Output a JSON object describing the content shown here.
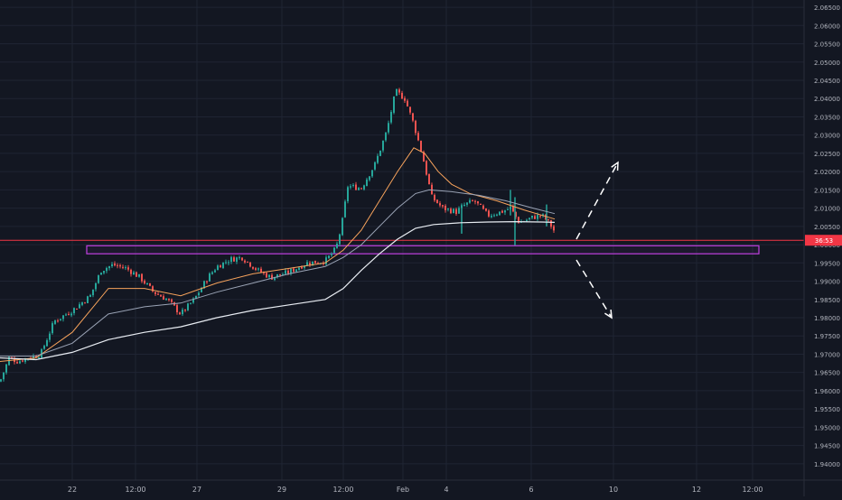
{
  "colors": {
    "background": "#131722",
    "grid": "#1f2433",
    "axis_text": "#b2b5be",
    "up": "#26a69a",
    "down": "#ef5350",
    "sma_short": "#f7a35c",
    "sma_mid": "#9aa3b5",
    "sma_long": "#e8ecf2",
    "price_line": "#f23645",
    "zone": "#c040e0",
    "arrows": "#ffffff"
  },
  "price_label": {
    "text": "36:53"
  },
  "chart_data": {
    "type": "candlestick",
    "title": "",
    "xlabel": "",
    "ylabel": "",
    "y_ticks": [
      "1.94000",
      "1.94500",
      "1.95000",
      "1.95500",
      "1.96000",
      "1.96500",
      "1.97000",
      "1.97500",
      "1.98000",
      "1.98500",
      "1.99000",
      "1.99500",
      "2.00000",
      "2.00500",
      "2.01000",
      "2.01500",
      "2.02000",
      "2.02500",
      "2.03000",
      "2.03500",
      "2.04000",
      "2.04500",
      "2.05000",
      "2.05500",
      "2.06000",
      "2.06500"
    ],
    "x_tick_labels": [
      "22",
      "12:00",
      "27",
      "29",
      "12:00",
      "Feb",
      "4",
      "6",
      "10",
      "12",
      "12:00"
    ],
    "ylim": [
      1.9365,
      2.0665
    ],
    "grid": true,
    "current_price": 2.0012,
    "support_zone": [
      1.9975,
      1.9997
    ],
    "projection_arrows": [
      "up",
      "down"
    ],
    "price_path": [
      [
        0,
        1.9625
      ],
      [
        10,
        1.969
      ],
      [
        20,
        1.968
      ],
      [
        30,
        1.969
      ],
      [
        45,
        1.97
      ],
      [
        60,
        1.979
      ],
      [
        80,
        1.982
      ],
      [
        100,
        1.986
      ],
      [
        112,
        1.993
      ],
      [
        125,
        1.9945
      ],
      [
        140,
        1.9935
      ],
      [
        155,
        1.991
      ],
      [
        170,
        1.987
      ],
      [
        185,
        1.985
      ],
      [
        200,
        1.981
      ],
      [
        215,
        1.985
      ],
      [
        230,
        1.991
      ],
      [
        240,
        1.994
      ],
      [
        255,
        1.996
      ],
      [
        268,
        1.9965
      ],
      [
        285,
        1.993
      ],
      [
        300,
        1.991
      ],
      [
        320,
        1.9925
      ],
      [
        340,
        1.995
      ],
      [
        360,
        1.9955
      ],
      [
        372,
        1.999
      ],
      [
        378,
        2.005
      ],
      [
        385,
        2.016
      ],
      [
        400,
        2.0155
      ],
      [
        415,
        2.022
      ],
      [
        428,
        2.031
      ],
      [
        438,
        2.042
      ],
      [
        448,
        2.04
      ],
      [
        458,
        2.033
      ],
      [
        468,
        2.024
      ],
      [
        478,
        2.013
      ],
      [
        490,
        2.01
      ],
      [
        505,
        2.009
      ],
      [
        515,
        2.011
      ],
      [
        525,
        2.012
      ],
      [
        540,
        2.008
      ],
      [
        555,
        2.009
      ],
      [
        565,
        2.01
      ],
      [
        575,
        2.006
      ],
      [
        590,
        2.0075
      ],
      [
        600,
        2.008
      ],
      [
        608,
        2.006
      ],
      [
        614,
        2.0035
      ]
    ],
    "series": [
      {
        "key": "sma_short",
        "values": [
          [
            0,
            1.968
          ],
          [
            40,
            1.969
          ],
          [
            80,
            1.976
          ],
          [
            120,
            1.988
          ],
          [
            160,
            1.988
          ],
          [
            200,
            1.986
          ],
          [
            240,
            1.9895
          ],
          [
            280,
            1.992
          ],
          [
            320,
            1.9935
          ],
          [
            360,
            1.995
          ],
          [
            380,
            1.9985
          ],
          [
            400,
            2.004
          ],
          [
            420,
            2.012
          ],
          [
            440,
            2.02
          ],
          [
            458,
            2.0265
          ],
          [
            470,
            2.025
          ],
          [
            485,
            2.02
          ],
          [
            500,
            2.0165
          ],
          [
            520,
            2.014
          ],
          [
            550,
            2.012
          ],
          [
            580,
            2.0095
          ],
          [
            614,
            2.007
          ]
        ]
      },
      {
        "key": "sma_mid",
        "values": [
          [
            0,
            1.9695
          ],
          [
            40,
            1.9695
          ],
          [
            80,
            1.973
          ],
          [
            120,
            1.981
          ],
          [
            160,
            1.983
          ],
          [
            200,
            1.984
          ],
          [
            240,
            1.987
          ],
          [
            280,
            1.9895
          ],
          [
            320,
            1.992
          ],
          [
            360,
            1.994
          ],
          [
            380,
            1.9965
          ],
          [
            400,
            2.0
          ],
          [
            420,
            2.005
          ],
          [
            440,
            2.01
          ],
          [
            460,
            2.014
          ],
          [
            475,
            2.015
          ],
          [
            500,
            2.0145
          ],
          [
            530,
            2.0135
          ],
          [
            560,
            2.012
          ],
          [
            590,
            2.01
          ],
          [
            614,
            2.0085
          ]
        ]
      },
      {
        "key": "sma_long",
        "values": [
          [
            0,
            1.969
          ],
          [
            40,
            1.9685
          ],
          [
            80,
            1.9705
          ],
          [
            120,
            1.974
          ],
          [
            160,
            1.976
          ],
          [
            200,
            1.9775
          ],
          [
            240,
            1.98
          ],
          [
            280,
            1.982
          ],
          [
            320,
            1.9835
          ],
          [
            360,
            1.985
          ],
          [
            380,
            1.988
          ],
          [
            400,
            1.993
          ],
          [
            420,
            1.9975
          ],
          [
            440,
            2.0015
          ],
          [
            460,
            2.0045
          ],
          [
            480,
            2.0055
          ],
          [
            510,
            2.006
          ],
          [
            540,
            2.0062
          ],
          [
            570,
            2.0063
          ],
          [
            600,
            2.0062
          ],
          [
            614,
            2.0061
          ]
        ]
      }
    ]
  }
}
